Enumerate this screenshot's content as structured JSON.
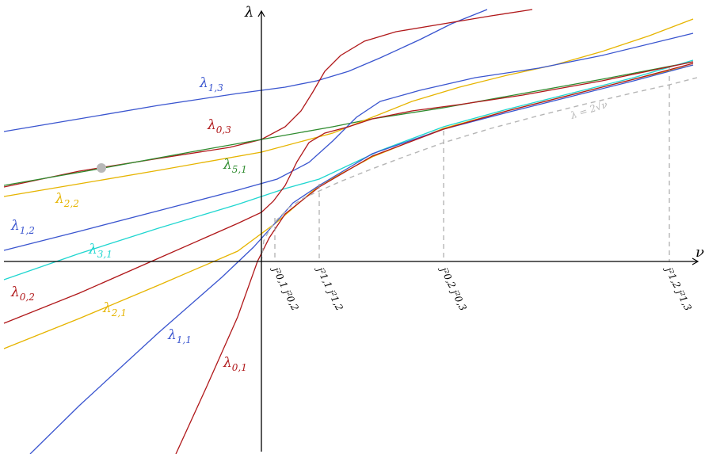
{
  "axes": {
    "x_label": "ν",
    "y_label": "λ"
  },
  "colors": {
    "red": "#b0181a",
    "blue": "#3a55cf",
    "gold": "#e6b400",
    "green": "#2e8b2e",
    "cyan": "#1fd6d0",
    "grey": "#b5b5b5"
  },
  "curve_labels": [
    {
      "id": "l13",
      "base": "λ",
      "sub": "1,3",
      "color": "#3a55cf"
    },
    {
      "id": "l03",
      "base": "λ",
      "sub": "0,3",
      "color": "#b0181a"
    },
    {
      "id": "l51",
      "base": "λ",
      "sub": "5,1",
      "color": "#2e8b2e"
    },
    {
      "id": "l22",
      "base": "λ",
      "sub": "2,2",
      "color": "#e6b400"
    },
    {
      "id": "l12",
      "base": "λ",
      "sub": "1,2",
      "color": "#3a55cf"
    },
    {
      "id": "l31",
      "base": "λ",
      "sub": "3,1",
      "color": "#1fd6d0"
    },
    {
      "id": "l02",
      "base": "λ",
      "sub": "0,2",
      "color": "#b0181a"
    },
    {
      "id": "l21",
      "base": "λ",
      "sub": "2,1",
      "color": "#e6b400"
    },
    {
      "id": "l11",
      "base": "λ",
      "sub": "1,1",
      "color": "#3a55cf"
    },
    {
      "id": "l01",
      "base": "λ",
      "sub": "0,1",
      "color": "#b0181a"
    }
  ],
  "parabola_label": "λ = 2√ν",
  "x_ticks": [
    {
      "id": "t1",
      "text": "j²0,1 j²0,2"
    },
    {
      "id": "t2",
      "text": "j²1,1 j²1,2"
    },
    {
      "id": "t3",
      "text": "j²0,2 j²0,3"
    },
    {
      "id": "t4",
      "text": "j²1,2 j²1,3"
    }
  ]
}
